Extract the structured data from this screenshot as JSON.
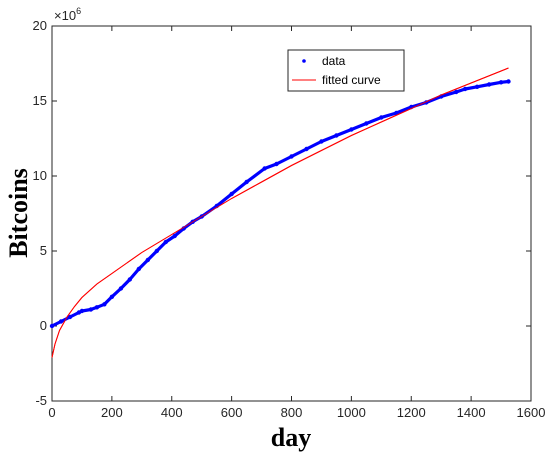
{
  "chart_data": {
    "type": "line",
    "xlabel": "day",
    "ylabel": "Bitcoins",
    "xlim": [
      0,
      1600
    ],
    "ylim": [
      -5,
      20
    ],
    "y_multiplier_base": "×10",
    "y_multiplier_exp": "6",
    "xticks": [
      "0",
      "200",
      "400",
      "600",
      "800",
      "1000",
      "1200",
      "1400",
      "1600"
    ],
    "yticks": [
      "-5",
      "0",
      "5",
      "10",
      "15",
      "20"
    ],
    "grid": false,
    "legend_position": "top-right",
    "series": [
      {
        "name": "data",
        "style": "dots",
        "color": "#0000ff",
        "x": [
          0,
          30,
          60,
          90,
          100,
          130,
          150,
          175,
          200,
          230,
          260,
          290,
          320,
          350,
          380,
          410,
          440,
          470,
          500,
          550,
          600,
          650,
          710,
          750,
          800,
          850,
          900,
          950,
          1000,
          1050,
          1100,
          1150,
          1200,
          1250,
          1300,
          1350,
          1380,
          1420,
          1460,
          1500,
          1525
        ],
        "y": [
          0,
          0.3,
          0.6,
          0.9,
          1.0,
          1.1,
          1.25,
          1.45,
          1.95,
          2.5,
          3.1,
          3.8,
          4.4,
          5.0,
          5.6,
          6.0,
          6.5,
          6.95,
          7.3,
          8.0,
          8.8,
          9.6,
          10.5,
          10.8,
          11.3,
          11.8,
          12.3,
          12.7,
          13.1,
          13.5,
          13.9,
          14.2,
          14.6,
          14.9,
          15.3,
          15.6,
          15.8,
          15.95,
          16.1,
          16.25,
          16.3
        ]
      },
      {
        "name": "fitted curve",
        "style": "line",
        "color": "#ff0000",
        "x": [
          0,
          10,
          25,
          50,
          75,
          100,
          150,
          200,
          300,
          400,
          500,
          600,
          700,
          800,
          900,
          1000,
          1100,
          1200,
          1300,
          1400,
          1500,
          1525
        ],
        "y": [
          -2.1,
          -1.2,
          -0.3,
          0.6,
          1.3,
          1.9,
          2.8,
          3.5,
          4.9,
          6.1,
          7.3,
          8.5,
          9.6,
          10.7,
          11.7,
          12.7,
          13.6,
          14.5,
          15.4,
          16.2,
          17.0,
          17.2
        ]
      }
    ]
  }
}
